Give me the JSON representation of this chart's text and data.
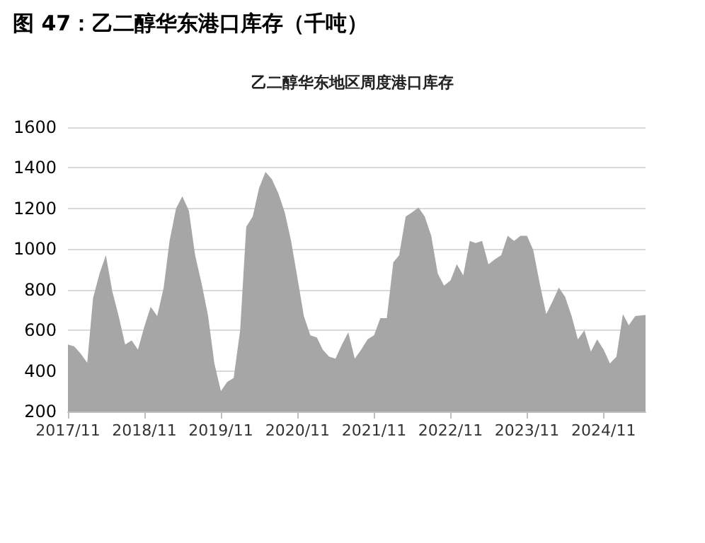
{
  "chart_data": {
    "type": "area",
    "title": "图 47：乙二醇华东港口库存（千吨）",
    "subtitle": "乙二醇华东地区周度港口库存",
    "x": [
      "2017-11",
      "2017-12",
      "2018-01",
      "2018-02",
      "2018-03",
      "2018-04",
      "2018-05",
      "2018-06",
      "2018-07",
      "2018-08",
      "2018-09",
      "2018-10",
      "2018-11",
      "2018-12",
      "2019-01",
      "2019-02",
      "2019-03",
      "2019-04",
      "2019-05",
      "2019-06",
      "2019-07",
      "2019-08",
      "2019-09",
      "2019-10",
      "2019-11",
      "2019-12",
      "2020-01",
      "2020-02",
      "2020-03",
      "2020-04",
      "2020-05",
      "2020-06",
      "2020-07",
      "2020-08",
      "2020-09",
      "2020-10",
      "2020-11",
      "2020-12",
      "2021-01",
      "2021-02",
      "2021-03",
      "2021-04",
      "2021-05",
      "2021-06",
      "2021-07",
      "2021-08",
      "2021-09",
      "2021-10",
      "2021-11",
      "2021-12",
      "2022-01",
      "2022-02",
      "2022-03",
      "2022-04",
      "2022-05",
      "2022-06",
      "2022-07",
      "2022-08",
      "2022-09",
      "2022-10",
      "2022-11",
      "2022-12",
      "2023-01",
      "2023-02",
      "2023-03",
      "2023-04",
      "2023-05",
      "2023-06",
      "2023-07",
      "2023-08",
      "2023-09",
      "2023-10",
      "2023-11",
      "2023-12",
      "2024-01",
      "2024-02",
      "2024-03",
      "2024-04",
      "2024-05",
      "2024-06",
      "2024-07",
      "2024-08",
      "2024-09",
      "2024-10",
      "2024-11",
      "2024-12",
      "2025-01",
      "2025-02",
      "2025-03",
      "2025-04",
      "2025-05-20"
    ],
    "series": [
      {
        "color": "#a6a6a6",
        "values": [
          530,
          520,
          485,
          440,
          760,
          880,
          970,
          790,
          670,
          530,
          550,
          505,
          620,
          715,
          670,
          810,
          1040,
          1200,
          1260,
          1190,
          970,
          830,
          670,
          437,
          300,
          345,
          365,
          600,
          1110,
          1160,
          1300,
          1380,
          1345,
          1275,
          1180,
          1040,
          855,
          670,
          575,
          565,
          505,
          470,
          460,
          530,
          590,
          460,
          505,
          555,
          575,
          660,
          660,
          935,
          970,
          1160,
          1180,
          1205,
          1160,
          1065,
          880,
          820,
          845,
          925,
          870,
          1040,
          1030,
          1040,
          925,
          950,
          970,
          1065,
          1040,
          1065,
          1065,
          995,
          830,
          680,
          740,
          810,
          765,
          670,
          555,
          600,
          495,
          555,
          505,
          437,
          470,
          680,
          625,
          670,
          675
        ]
      }
    ],
    "xlim": [
      "2017-11",
      "2025-05-20"
    ],
    "xticks": [
      {
        "value": "2017-11",
        "label": "2017/11"
      },
      {
        "value": "2018-11",
        "label": "2018/11"
      },
      {
        "value": "2019-11",
        "label": "2019/11"
      },
      {
        "value": "2020-11",
        "label": "2020/11"
      },
      {
        "value": "2021-11",
        "label": "2021/11"
      },
      {
        "value": "2022-11",
        "label": "2022/11"
      },
      {
        "value": "2023-11",
        "label": "2023/11"
      },
      {
        "value": "2024-11",
        "label": "2024/11"
      }
    ],
    "ylim": [
      200,
      1600
    ],
    "yticks": [
      200,
      400,
      600,
      800,
      1000,
      1200,
      1400,
      1600
    ],
    "grid": "y"
  }
}
